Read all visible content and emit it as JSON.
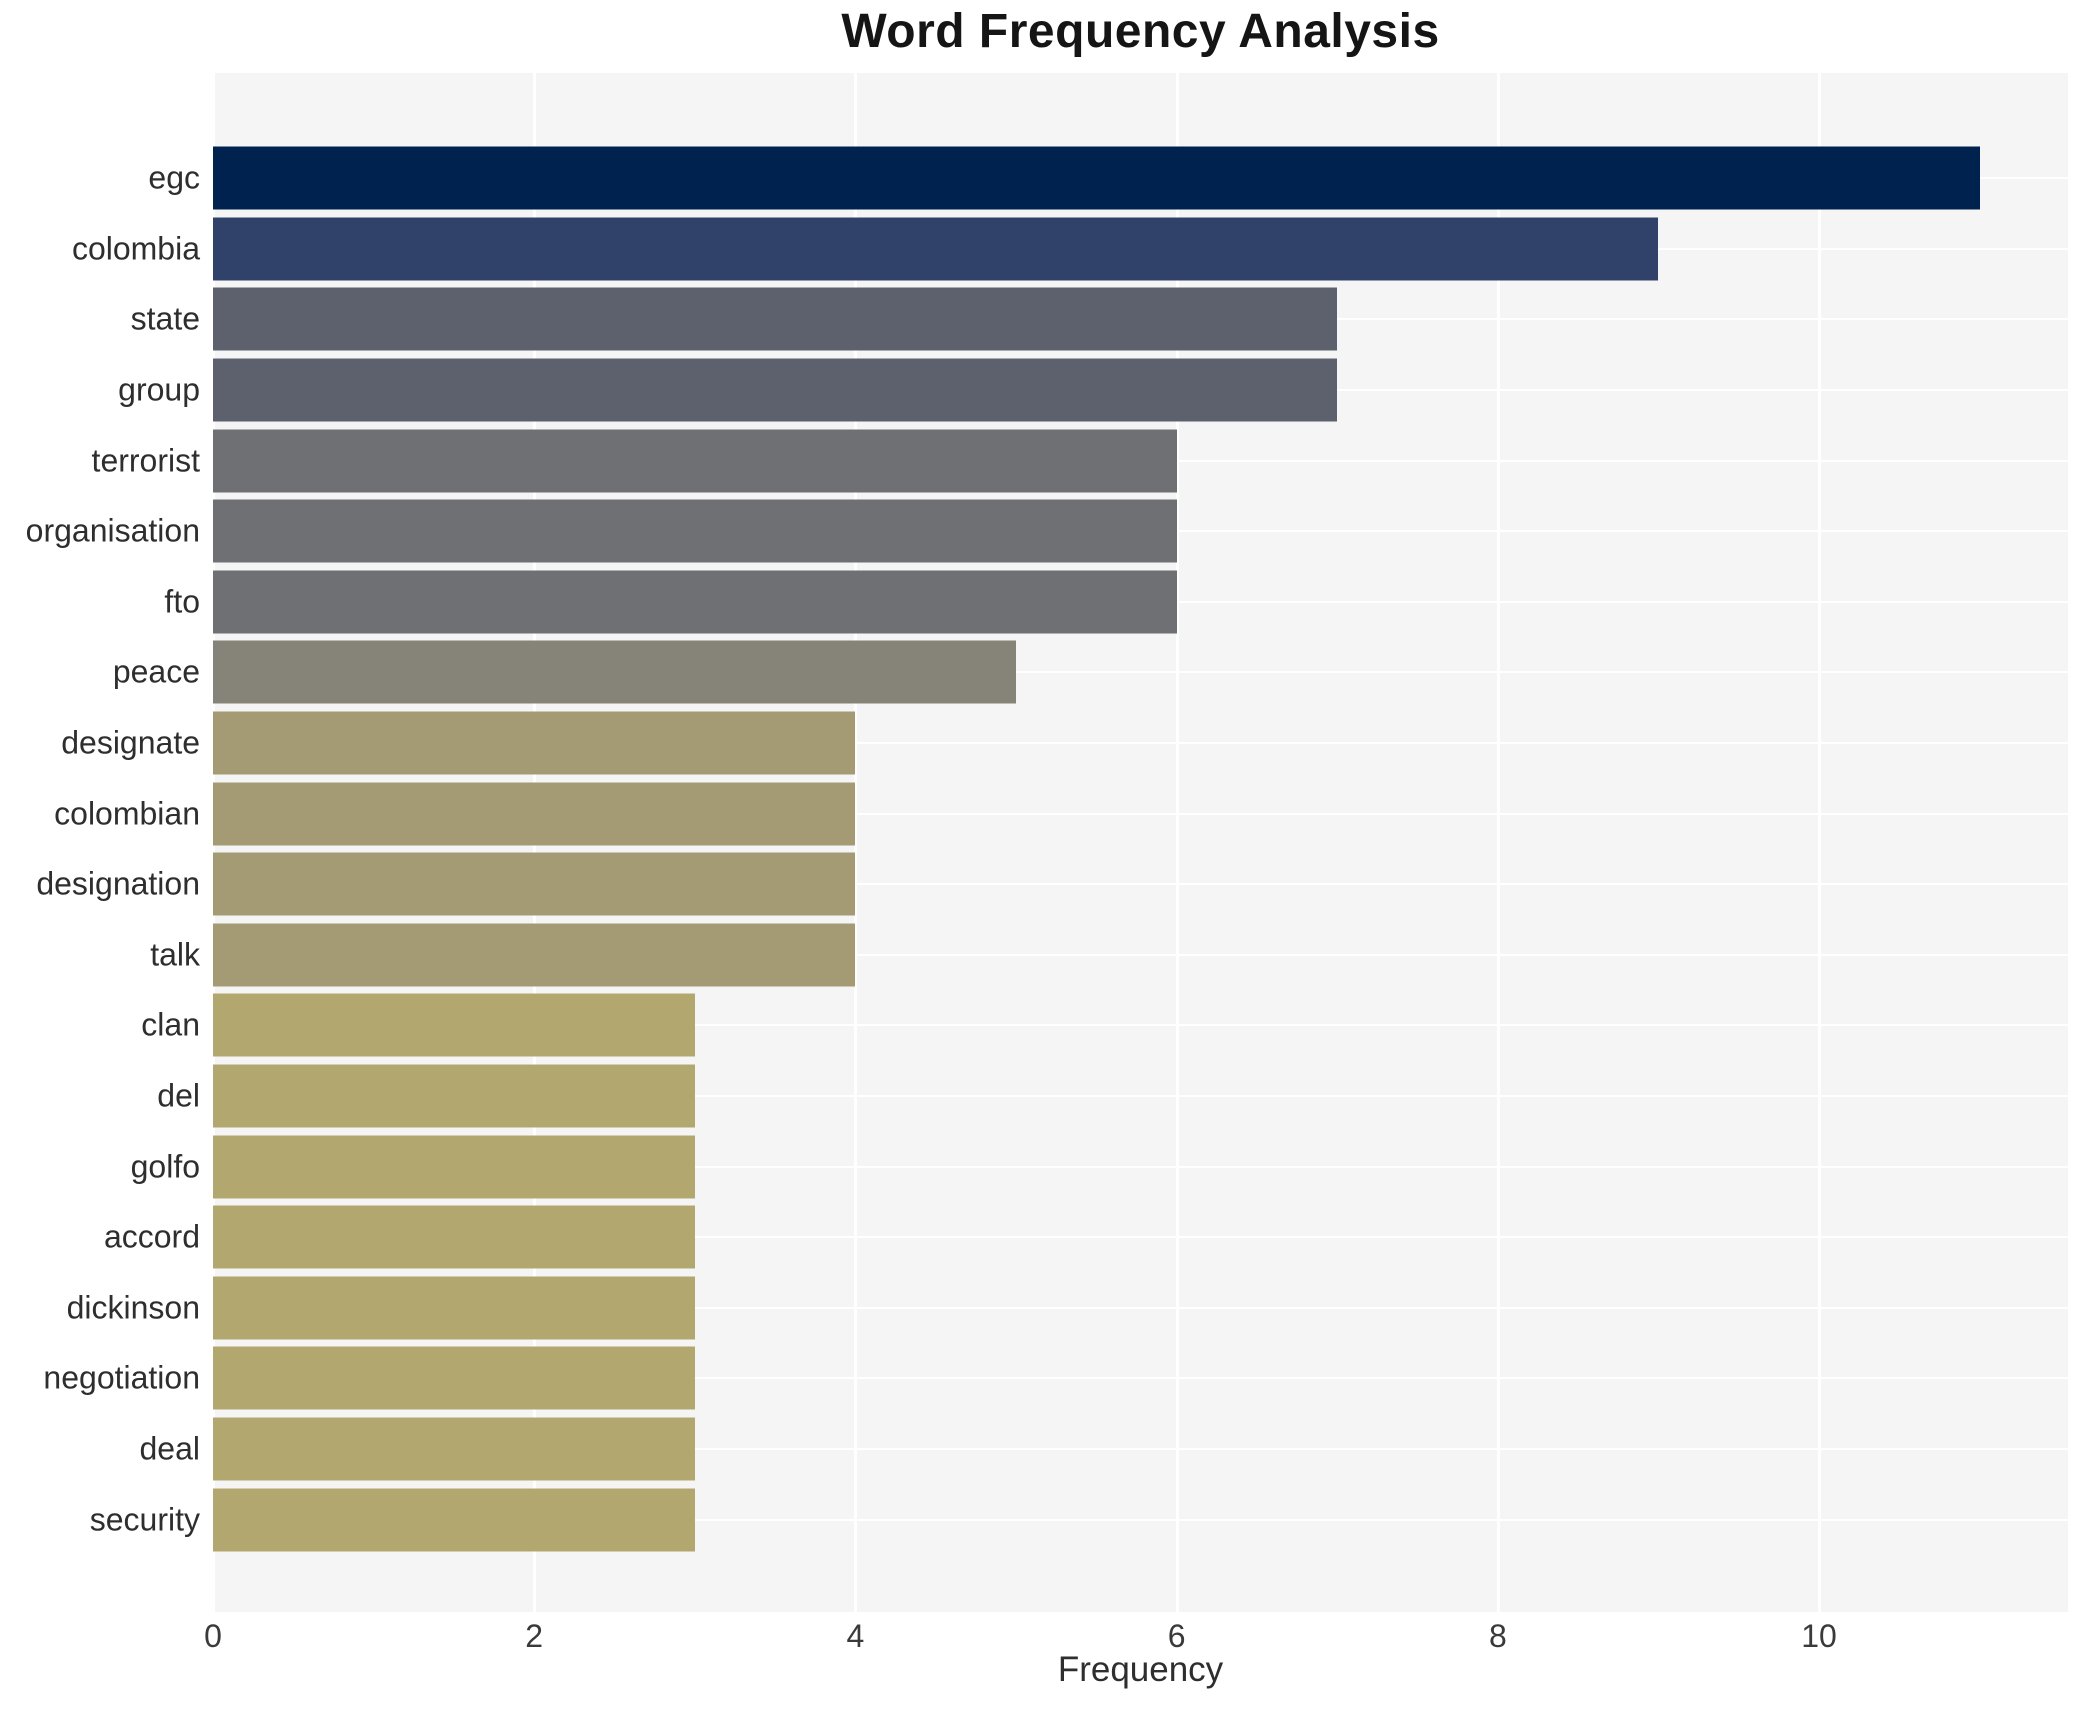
{
  "chart_data": {
    "type": "bar",
    "orientation": "horizontal",
    "title": "Word Frequency Analysis",
    "xlabel": "Frequency",
    "ylabel": "",
    "xlim": [
      0,
      11.55
    ],
    "xticks": [
      0,
      2,
      4,
      6,
      8,
      10
    ],
    "grid": true,
    "legend": "none",
    "categories": [
      "egc",
      "colombia",
      "state",
      "group",
      "terrorist",
      "organisation",
      "fto",
      "peace",
      "designate",
      "colombian",
      "designation",
      "talk",
      "clan",
      "del",
      "golfo",
      "accord",
      "dickinson",
      "negotiation",
      "deal",
      "security"
    ],
    "values": [
      11,
      9,
      7,
      7,
      6,
      6,
      6,
      5,
      4,
      4,
      4,
      4,
      3,
      3,
      3,
      3,
      3,
      3,
      3,
      3
    ],
    "bar_colors": [
      "#00224e",
      "#304269",
      "#5c616d",
      "#5c616d",
      "#6f7073",
      "#6f7073",
      "#6f7073",
      "#868478",
      "#a49b74",
      "#a49b74",
      "#a49b74",
      "#a49b74",
      "#b2a76e",
      "#b2a76e",
      "#b2a76e",
      "#b2a76e",
      "#b2a76e",
      "#b2a76e",
      "#b2a76e",
      "#b2a76e"
    ]
  },
  "colors": {
    "figure_background": "#ffffff",
    "plot_background": "#f5f5f6",
    "gridline": "#ffffff",
    "title_text": "#151515",
    "label_text": "#2e2e2e"
  }
}
